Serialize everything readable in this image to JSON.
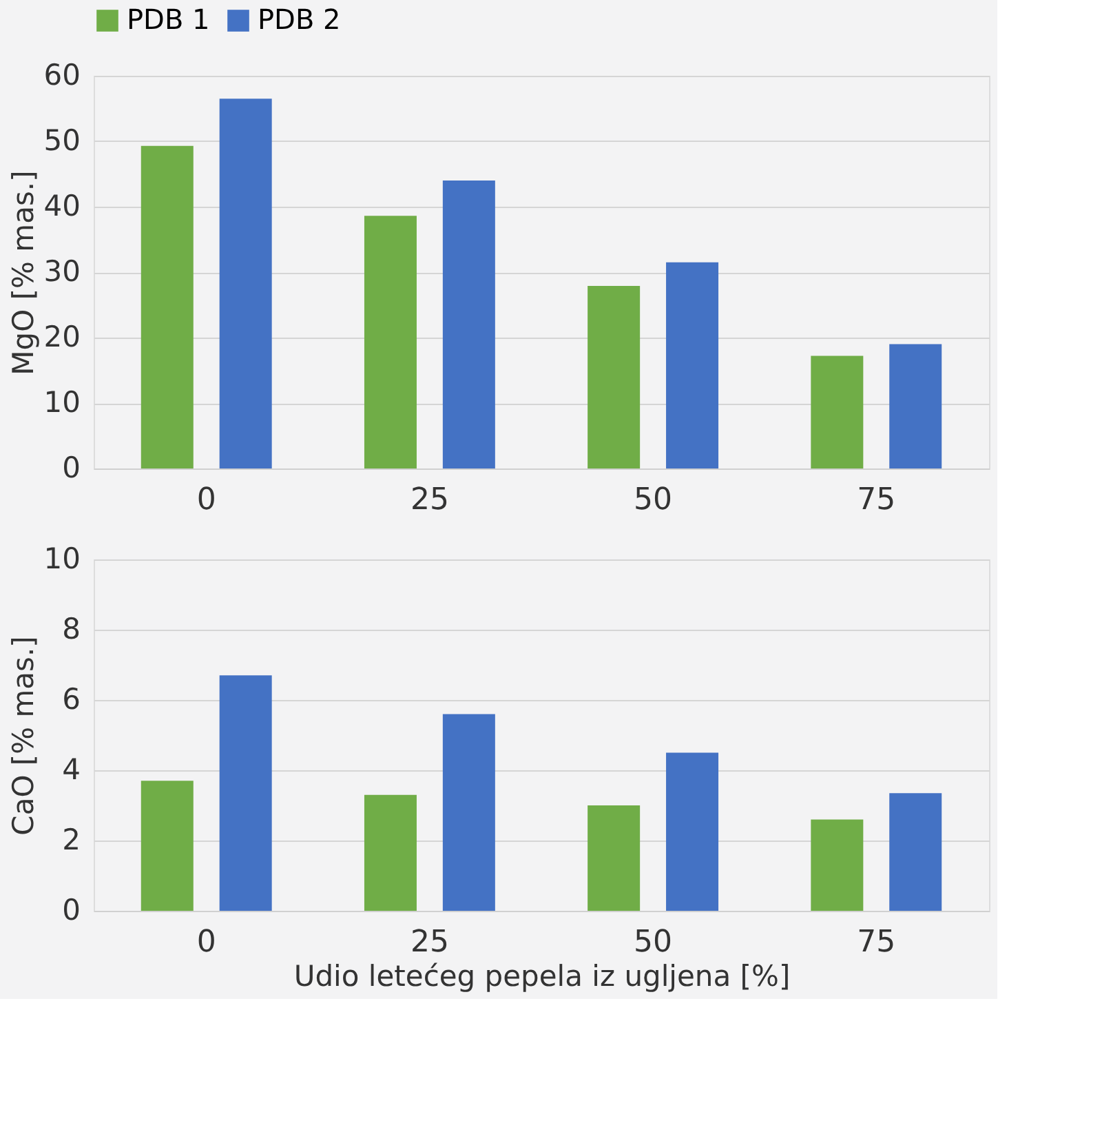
{
  "chart_data": [
    {
      "type": "bar",
      "ylabel": "MgO [% mas.]",
      "categories": [
        "0",
        "25",
        "50",
        "75"
      ],
      "ylim": [
        0,
        60
      ],
      "yticks": [
        0,
        10,
        20,
        30,
        40,
        50,
        60
      ],
      "grid": "y",
      "legend": "top",
      "series": [
        {
          "name": "PDB 1",
          "color": "#70ad47",
          "values": [
            49.3,
            38.6,
            27.9,
            17.2
          ]
        },
        {
          "name": "PDB 2",
          "color": "#4472c4",
          "values": [
            56.5,
            44.0,
            31.5,
            19.0
          ]
        }
      ]
    },
    {
      "type": "bar",
      "ylabel": "CaO [% mas.]",
      "xlabel": "Udio letećeg pepela iz ugljena [%]",
      "categories": [
        "0",
        "25",
        "50",
        "75"
      ],
      "ylim": [
        0,
        10
      ],
      "yticks": [
        0,
        2,
        4,
        6,
        8,
        10
      ],
      "grid": "y",
      "series": [
        {
          "name": "PDB 1",
          "color": "#70ad47",
          "values": [
            3.7,
            3.3,
            3.0,
            2.6
          ]
        },
        {
          "name": "PDB 2",
          "color": "#4472c4",
          "values": [
            6.7,
            5.6,
            4.5,
            3.35
          ]
        }
      ]
    }
  ]
}
